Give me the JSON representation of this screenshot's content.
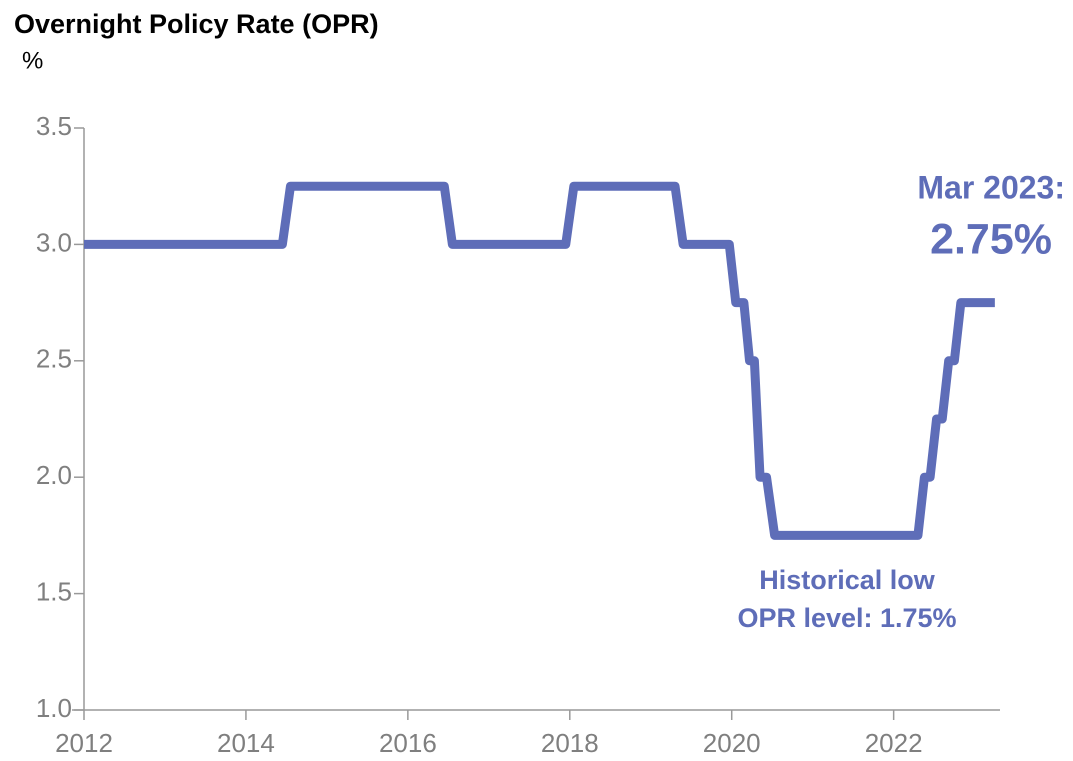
{
  "chart_data": {
    "type": "line",
    "title": "Overnight Policy Rate (OPR)",
    "y_label": "%",
    "series": [
      {
        "name": "OPR",
        "color": "#5e6db8",
        "x": [
          2012,
          2014.45,
          2014.55,
          2016.45,
          2016.55,
          2017.95,
          2018.05,
          2019.3,
          2019.4,
          2019.97,
          2020.05,
          2020.15,
          2020.22,
          2020.28,
          2020.35,
          2020.43,
          2020.53,
          2022.3,
          2022.38,
          2022.45,
          2022.53,
          2022.6,
          2022.68,
          2022.75,
          2022.83,
          2023.25
        ],
        "values": [
          3.0,
          3.0,
          3.25,
          3.25,
          3.0,
          3.0,
          3.25,
          3.25,
          3.0,
          3.0,
          2.75,
          2.75,
          2.5,
          2.5,
          2.0,
          2.0,
          1.75,
          1.75,
          2.0,
          2.0,
          2.25,
          2.25,
          2.5,
          2.5,
          2.75,
          2.75
        ]
      }
    ],
    "xlim": [
      2012,
      2023.4
    ],
    "xticks": [
      2012,
      2014,
      2016,
      2018,
      2020,
      2022
    ],
    "ylim": [
      1,
      3.5
    ],
    "yticks": [
      {
        "value": 1,
        "label": "1.0"
      },
      1.5,
      {
        "value": 2,
        "label": "2.0"
      },
      2.5,
      {
        "value": 3,
        "label": "3.0"
      },
      3.5
    ],
    "annotations": [
      "Mar 2023:",
      "2.75%",
      "Historical low",
      "OPR level: 1.75%"
    ]
  }
}
